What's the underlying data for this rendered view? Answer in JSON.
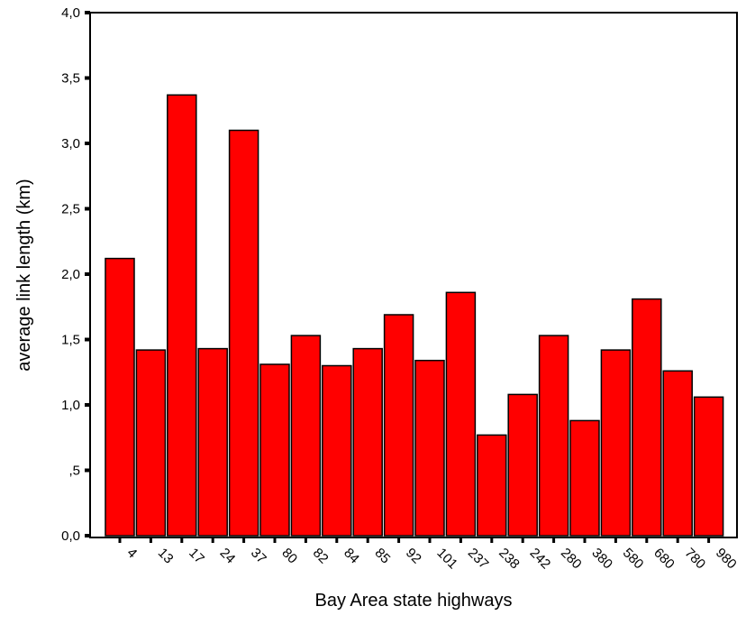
{
  "chart_data": {
    "type": "bar",
    "title": "",
    "xlabel": "Bay Area state highways",
    "ylabel": "average link length (km)",
    "categories": [
      "4",
      "13",
      "17",
      "24",
      "37",
      "80",
      "82",
      "84",
      "85",
      "92",
      "101",
      "237",
      "238",
      "242",
      "280",
      "380",
      "580",
      "680",
      "780",
      "980"
    ],
    "values": [
      2.12,
      1.42,
      3.37,
      1.43,
      3.1,
      1.31,
      1.53,
      1.3,
      1.43,
      1.69,
      1.34,
      1.86,
      0.77,
      1.08,
      1.53,
      0.88,
      1.42,
      1.81,
      1.26,
      1.06
    ],
    "ylim": [
      0,
      4.0
    ],
    "yticks": [
      "0,0",
      ",5",
      "1,0",
      "1,5",
      "2,0",
      "2,5",
      "3,0",
      "3,5",
      "4,0"
    ],
    "bar_color": "#ff0000",
    "bar_edge_color": "#000000",
    "grid": false,
    "legend": "none"
  }
}
